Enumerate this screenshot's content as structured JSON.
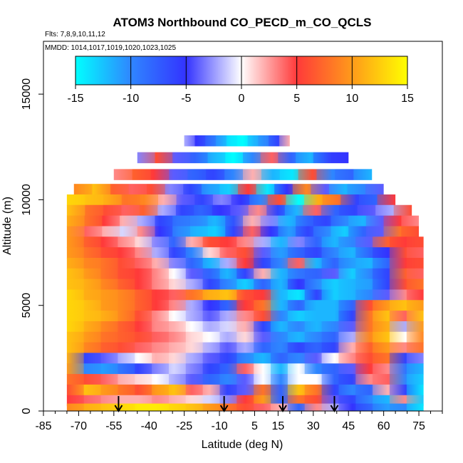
{
  "chart_data": {
    "type": "heatmap",
    "title": "ATOM3 Northbound CO_PECD_m_CO_QCLS",
    "flights_label": "Flts: 7,8,9,10,11,12",
    "dates_label": "MMDD: 1014,1017,1019,1020,1023,1025",
    "xlabel": "Latitude (deg N)",
    "ylabel": "Altitude (m)",
    "xlim": [
      -85,
      85
    ],
    "ylim": [
      0,
      17500
    ],
    "x_ticks": [
      -85,
      -70,
      -55,
      -40,
      -25,
      -10,
      5,
      15,
      30,
      45,
      60,
      75
    ],
    "y_ticks": [
      0,
      5000,
      10000,
      15000
    ],
    "colorbar": {
      "range": [
        -15,
        15
      ],
      "ticks": [
        -15,
        -10,
        -5,
        0,
        5,
        10,
        15
      ],
      "colors": [
        "#00ffff",
        "#2f86ff",
        "#3333ff",
        "#ffffff",
        "#ff3a3a",
        "#ff9a1a",
        "#ffff00"
      ]
    },
    "arrow_latitudes": [
      -53,
      -8,
      17,
      39
    ],
    "value_rows": [
      {
        "alt": 12800,
        "lat_min": -25,
        "lat_max": 20,
        "values": [
          -2,
          -5,
          -8,
          -11,
          -14,
          -15,
          -12,
          -10,
          -6,
          2
        ]
      },
      {
        "alt": 12000,
        "lat_min": -45,
        "lat_max": 45,
        "values": [
          -3,
          6,
          -4,
          -8,
          -12,
          -15,
          -10,
          4,
          -8,
          -12,
          -6,
          -5
        ]
      },
      {
        "alt": 11200,
        "lat_min": -55,
        "lat_max": 55,
        "values": [
          3,
          7,
          5,
          -4,
          -8,
          -6,
          -10,
          2,
          -12,
          -14,
          6,
          -10,
          -8,
          -12
        ]
      },
      {
        "alt": 10500,
        "lat_min": -72,
        "lat_max": 60,
        "values": [
          9,
          12,
          7,
          4,
          6,
          -3,
          -6,
          -11,
          -13,
          5,
          -14,
          -5,
          9,
          -4,
          -12,
          -10,
          -4
        ]
      },
      {
        "alt": 10000,
        "lat_min": -75,
        "lat_max": 65,
        "values": [
          13,
          12,
          11,
          8,
          9,
          2,
          -4,
          -6,
          -3,
          -5,
          -10,
          6,
          -15,
          11,
          8,
          -6,
          -8,
          5
        ]
      },
      {
        "alt": 9500,
        "lat_min": -75,
        "lat_max": 72,
        "values": [
          12,
          8,
          6,
          4,
          7,
          -2,
          -6,
          -8,
          -5,
          -4,
          3,
          -6,
          -12,
          4,
          -8,
          -6,
          -4,
          -2,
          6
        ]
      },
      {
        "alt": 9000,
        "lat_min": -75,
        "lat_max": 75,
        "values": [
          11,
          8,
          5,
          2,
          -2,
          -6,
          -9,
          -10,
          -12,
          -7,
          2,
          -3,
          -12,
          -8,
          -6,
          -10,
          -12,
          -4,
          5,
          3
        ]
      },
      {
        "alt": 8500,
        "lat_min": -75,
        "lat_max": 75,
        "values": [
          10,
          4,
          2,
          -1,
          3,
          -5,
          -10,
          -12,
          -13,
          -6,
          4,
          -5,
          -11,
          -6,
          -10,
          -13,
          -8,
          -4,
          8,
          6
        ]
      },
      {
        "alt": 8000,
        "lat_min": -75,
        "lat_max": 77,
        "values": [
          10,
          7,
          5,
          3,
          1,
          -3,
          -8,
          2,
          6,
          5,
          3,
          -2,
          -12,
          -3,
          -8,
          -12,
          -10,
          -4,
          7,
          5,
          6
        ]
      },
      {
        "alt": 7500,
        "lat_min": -75,
        "lat_max": 77,
        "values": [
          10,
          8,
          6,
          5,
          3,
          -2,
          -6,
          -10,
          1,
          4,
          6,
          -4,
          -11,
          -8,
          -6,
          -10,
          -12,
          -8,
          -5,
          6,
          4
        ]
      },
      {
        "alt": 7000,
        "lat_min": -75,
        "lat_max": 77,
        "values": [
          11,
          9,
          8,
          6,
          4,
          2,
          -3,
          -8,
          -12,
          -2,
          5,
          -6,
          -10,
          4,
          -12,
          -8,
          -11,
          -12,
          -8,
          5,
          6
        ]
      },
      {
        "alt": 6500,
        "lat_min": -75,
        "lat_max": 77,
        "values": [
          12,
          10,
          8,
          6,
          5,
          3,
          0,
          -4,
          -8,
          -12,
          -6,
          2,
          -12,
          -9,
          -8,
          -4,
          -13,
          -10,
          -6,
          7,
          4
        ]
      },
      {
        "alt": 6000,
        "lat_min": -75,
        "lat_max": 77,
        "values": [
          12,
          11,
          9,
          7,
          5,
          3,
          1,
          -2,
          -6,
          -10,
          -13,
          -8,
          -12,
          -5,
          -10,
          -13,
          -12,
          -11,
          -6,
          6,
          8
        ]
      },
      {
        "alt": 5500,
        "lat_min": -75,
        "lat_max": 77,
        "values": [
          13,
          11,
          10,
          9,
          7,
          5,
          4,
          8,
          11,
          12,
          6,
          5,
          -12,
          -14,
          -6,
          -13,
          -12,
          -10,
          -4,
          3,
          5
        ]
      },
      {
        "alt": 5000,
        "lat_min": -75,
        "lat_max": 77,
        "values": [
          13,
          12,
          10,
          9,
          7,
          5,
          3,
          -2,
          -5,
          -8,
          5,
          8,
          -12,
          -8,
          -12,
          -12,
          -8,
          6,
          10,
          12,
          10
        ]
      },
      {
        "alt": 4500,
        "lat_min": -75,
        "lat_max": 77,
        "values": [
          13,
          12,
          11,
          9,
          6,
          3,
          0,
          -2,
          -4,
          -2,
          3,
          6,
          -10,
          -13,
          -12,
          -12,
          -6,
          8,
          12,
          4,
          12
        ]
      },
      {
        "alt": 4000,
        "lat_min": -75,
        "lat_max": 77,
        "values": [
          13,
          11,
          9,
          7,
          5,
          3,
          2,
          0,
          -2,
          -1,
          2,
          -6,
          -12,
          -10,
          -12,
          -10,
          -4,
          8,
          11,
          -2,
          10
        ]
      },
      {
        "alt": 3500,
        "lat_min": -75,
        "lat_max": 77,
        "values": [
          12,
          10,
          8,
          7,
          6,
          4,
          3,
          1,
          0,
          -2,
          1,
          -4,
          -10,
          -12,
          -10,
          -8,
          -2,
          9,
          12,
          0,
          9
        ]
      },
      {
        "alt": 3000,
        "lat_min": -75,
        "lat_max": 77,
        "values": [
          12,
          9,
          7,
          6,
          4,
          3,
          2,
          1,
          -2,
          -4,
          -2,
          -8,
          -10,
          -6,
          -8,
          -6,
          2,
          7,
          10,
          3,
          8
        ]
      },
      {
        "alt": 2500,
        "lat_min": -75,
        "lat_max": 77,
        "values": [
          11,
          -6,
          -4,
          -2,
          0,
          2,
          1,
          -2,
          -4,
          -6,
          -10,
          -12,
          -8,
          -10,
          -4,
          0,
          3,
          6,
          8,
          -6,
          -3
        ]
      },
      {
        "alt": 2000,
        "lat_min": -75,
        "lat_max": 77,
        "values": [
          10,
          -10,
          -11,
          -9,
          -6,
          -3,
          -1,
          -3,
          -6,
          -8,
          4,
          0,
          -12,
          0,
          -10,
          -8,
          -4,
          5,
          3,
          -9,
          -12
        ]
      },
      {
        "alt": 1500,
        "lat_min": -75,
        "lat_max": 77,
        "values": [
          8,
          6,
          4,
          2,
          1,
          0,
          -2,
          -4,
          -8,
          -10,
          -4,
          0,
          -10,
          0,
          0,
          -8,
          -6,
          3,
          4,
          -10,
          -13
        ]
      },
      {
        "alt": 1000,
        "lat_min": -75,
        "lat_max": 77,
        "values": [
          6,
          12,
          10,
          8,
          6,
          10,
          12,
          4,
          2,
          -6,
          -4,
          8,
          -8,
          12,
          8,
          -6,
          -10,
          -8,
          2,
          -6,
          -14
        ]
      },
      {
        "alt": 500,
        "lat_min": -75,
        "lat_max": 77,
        "values": [
          5,
          4,
          3,
          2,
          2,
          3,
          2,
          1,
          -1,
          -3,
          5,
          10,
          -8,
          8,
          6,
          -4,
          -6,
          -10,
          -12,
          3,
          -13
        ]
      },
      {
        "alt": 100,
        "lat_min": -75,
        "lat_max": 77,
        "values": [
          9,
          11,
          12,
          13,
          14,
          14,
          13,
          12,
          10,
          8,
          6,
          4,
          2,
          -8,
          3,
          -2,
          -5,
          -8,
          -11,
          -10,
          -14
        ]
      }
    ]
  }
}
